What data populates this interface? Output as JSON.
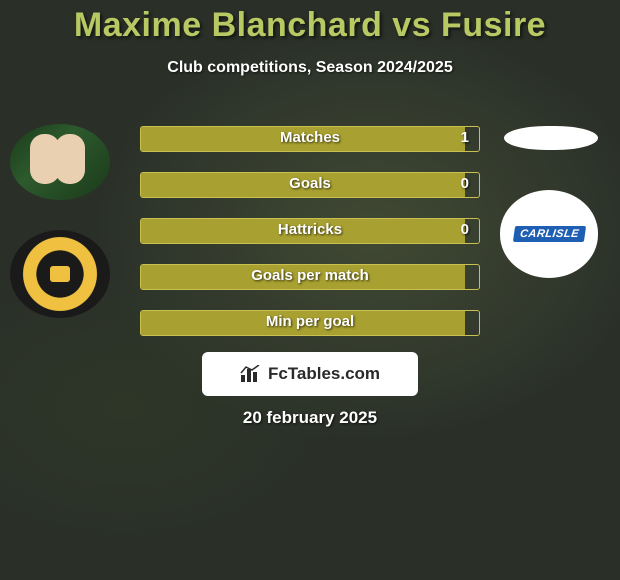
{
  "header": {
    "title": "Maxime Blanchard vs Fusire",
    "title_color": "#b8c862",
    "title_fontsize": 34,
    "subtitle": "Club competitions, Season 2024/2025",
    "subtitle_color": "#ffffff",
    "subtitle_fontsize": 16
  },
  "background_color": "#2a3028",
  "players": {
    "left": {
      "photo_name": "player1-photo",
      "crest_name": "newport-county-crest"
    },
    "right": {
      "photo_name": "player2-photo",
      "crest_name": "carlisle-crest",
      "crest_text": "CARLISLE"
    }
  },
  "stats": {
    "type": "bar",
    "bar_color": "#a8a030",
    "border_color": "#c8c050",
    "label_color": "#ffffff",
    "label_fontsize": 15,
    "rows": [
      {
        "label": "Matches",
        "value": "1",
        "fill_pct": 96
      },
      {
        "label": "Goals",
        "value": "0",
        "fill_pct": 96
      },
      {
        "label": "Hattricks",
        "value": "0",
        "fill_pct": 96
      },
      {
        "label": "Goals per match",
        "value": "",
        "fill_pct": 96
      },
      {
        "label": "Min per goal",
        "value": "",
        "fill_pct": 96
      }
    ]
  },
  "branding": {
    "text": "FcTables.com",
    "bg_color": "#ffffff",
    "text_color": "#2a2a2a",
    "icon_name": "bar-chart-icon"
  },
  "date": "20 february 2025"
}
